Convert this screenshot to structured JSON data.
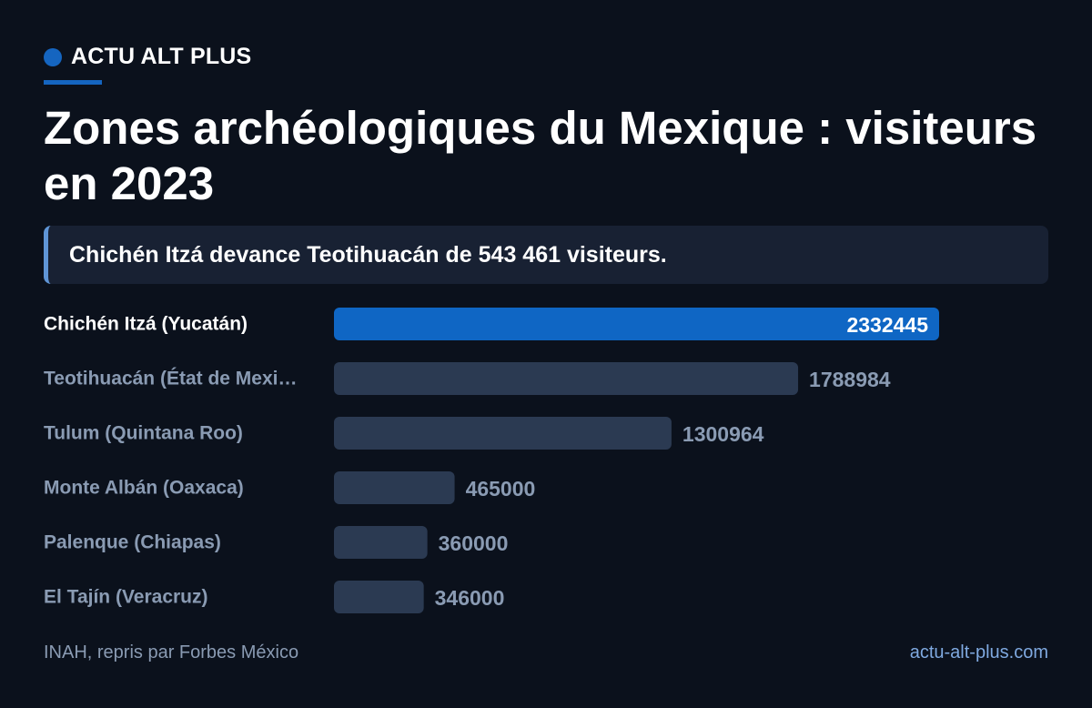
{
  "brand": {
    "name": "ACTU ALT PLUS"
  },
  "title": "Zones archéologiques du Mexique : visiteurs en 2023",
  "callout": "Chichén Itzá devance Teotihuacán de 543 461 visiteurs.",
  "colors": {
    "accent": "#1565c0",
    "highlight_bar": "#0f66c4",
    "bar": "#2b3a52",
    "muted_text": "#8a9bb3",
    "link": "#7fa9e0"
  },
  "chart_data": {
    "type": "bar",
    "orientation": "horizontal",
    "categories": [
      "Chichén Itzá (Yucatán)",
      "Teotihuacán (État de Mexi…",
      "Tulum (Quintana Roo)",
      "Monte Albán (Oaxaca)",
      "Palenque (Chiapas)",
      "El Tajín (Veracruz)"
    ],
    "values": [
      2332445,
      1788984,
      1300964,
      465000,
      360000,
      346000
    ],
    "value_labels": [
      "2332445",
      "1788984",
      "1300964",
      "465000",
      "360000",
      "346000"
    ],
    "highlight_index": 0,
    "xlim": [
      0,
      2332445
    ],
    "grid": false,
    "legend": "none"
  },
  "footer": {
    "source": "INAH, repris par Forbes México",
    "site": "actu-alt-plus.com"
  }
}
